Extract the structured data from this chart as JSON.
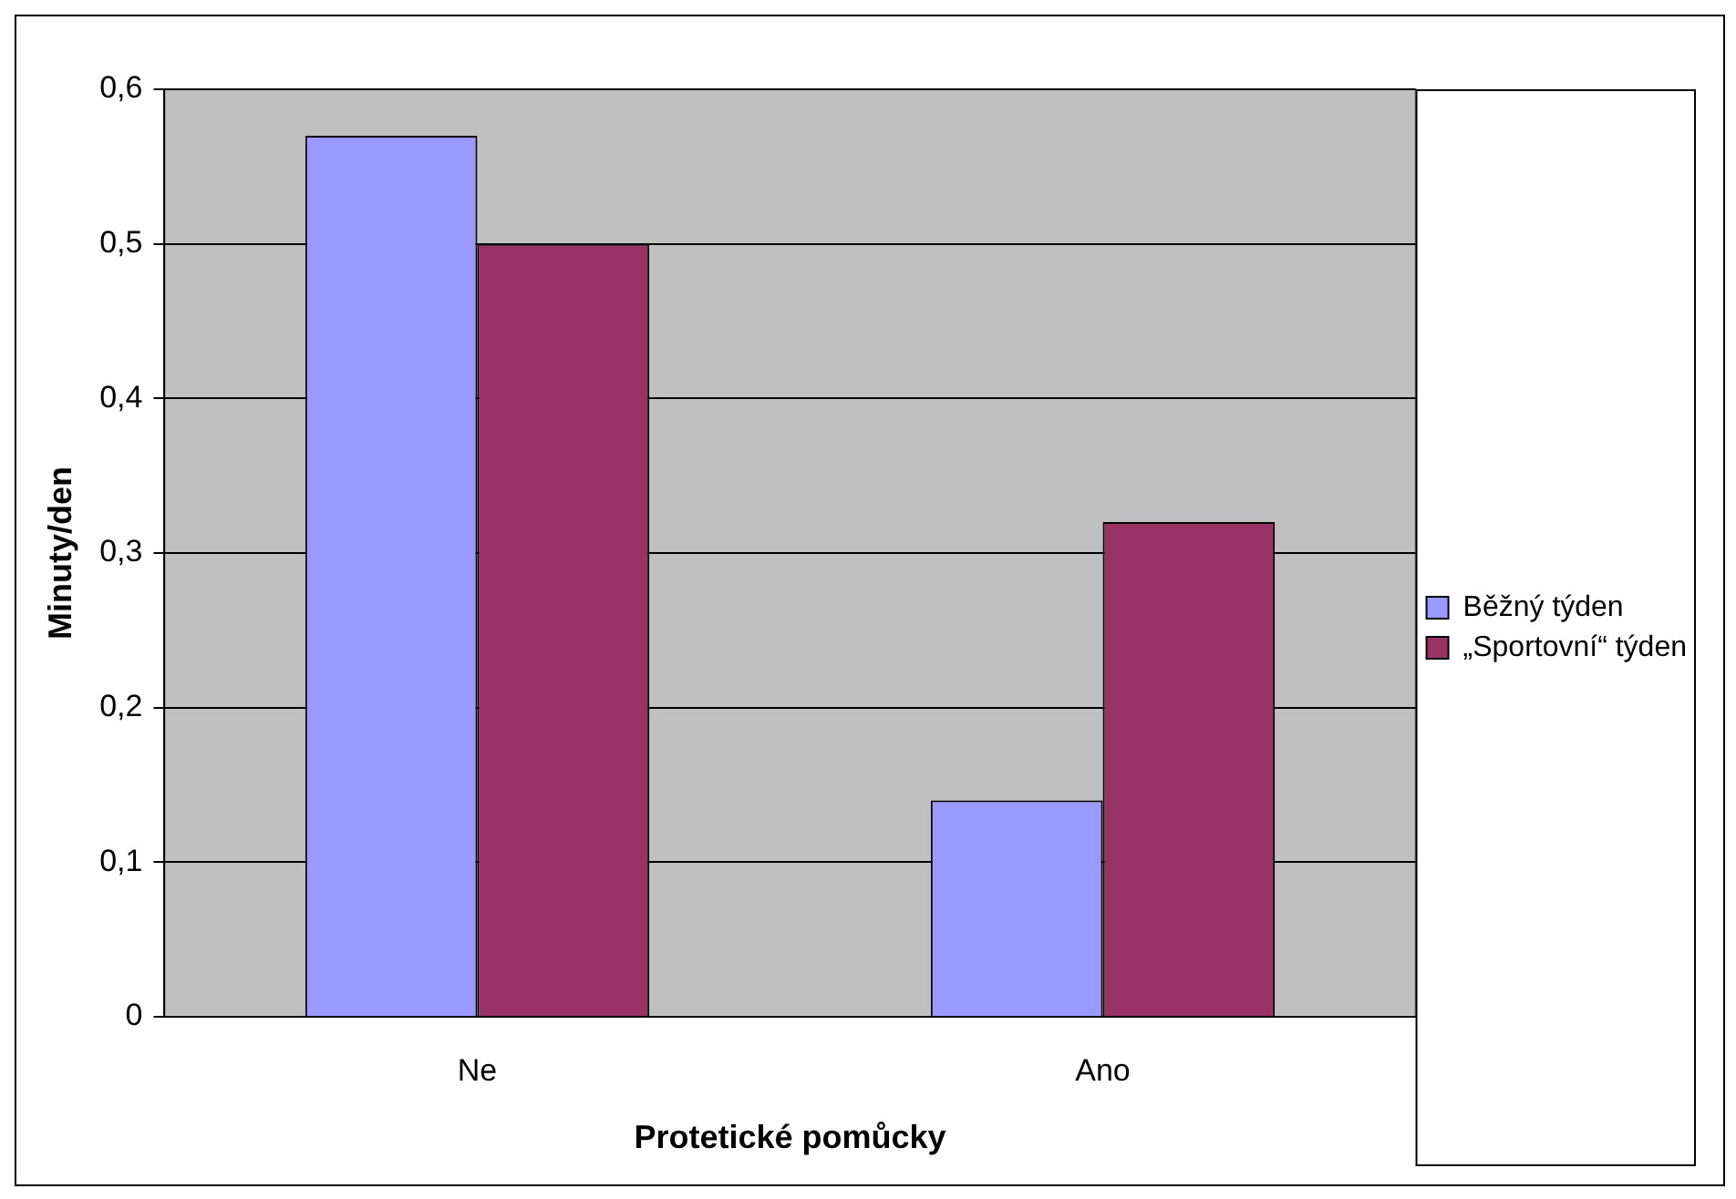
{
  "chart_data": {
    "type": "bar",
    "xlabel": "Protetické pomůcky",
    "ylabel": "Minuty/den",
    "categories": [
      "Ne",
      "Ano"
    ],
    "series": [
      {
        "name": "Běžný týden",
        "color": "#9999ff",
        "values": [
          0.57,
          0.14
        ]
      },
      {
        "name": "„Sportovní“ týden",
        "color": "#993366",
        "values": [
          0.5,
          0.32
        ]
      }
    ],
    "ylim": [
      0,
      0.6
    ],
    "yticks": [
      {
        "value": 0,
        "label": "0"
      },
      {
        "value": 0.1,
        "label": "0,1"
      },
      {
        "value": 0.2,
        "label": "0,2"
      },
      {
        "value": 0.3,
        "label": "0,3"
      },
      {
        "value": 0.4,
        "label": "0,4"
      },
      {
        "value": 0.5,
        "label": "0,5"
      },
      {
        "value": 0.6,
        "label": "0,6"
      }
    ],
    "grid": "y",
    "legend": "right"
  }
}
